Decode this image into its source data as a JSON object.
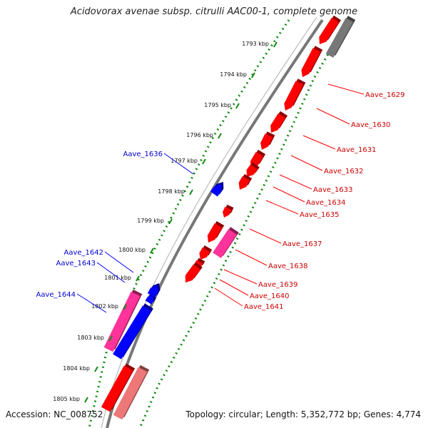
{
  "title": "Acidovorax avenae subsp. citrulli AAC00-1, complete genome",
  "footer": {
    "accession": "Accession: NC_008752",
    "summary": "Topology: circular; Length: 5,352,772 bp; Genes: 4,774"
  },
  "colors": {
    "forward_gene": "#ff0000",
    "reverse_gene": "#0000ff",
    "pseudo_forward": "#ff3399",
    "pale_gene": "#ee7777",
    "grey_gene": "#777777",
    "ticks": "#118811",
    "backbone": "#777777"
  },
  "ticks": [
    "1793 kbp",
    "1794 kbp",
    "1795 kbp",
    "1796 kbp",
    "1797 kbp",
    "1798 kbp",
    "1799 kbp",
    "1800 kbp",
    "1801 kbp",
    "1802 kbp",
    "1803 kbp",
    "1804 kbp",
    "1805 kbp"
  ],
  "labels": {
    "right": [
      "Aave_1629",
      "Aave_1630",
      "Aave_1631",
      "Aave_1632",
      "Aave_1633",
      "Aave_1634",
      "Aave_1635",
      "Aave_1637",
      "Aave_1638",
      "Aave_1639",
      "Aave_1640",
      "Aave_1641"
    ],
    "left": [
      "Aave_1636",
      "Aave_1642",
      "Aave_1643",
      "Aave_1644"
    ]
  }
}
